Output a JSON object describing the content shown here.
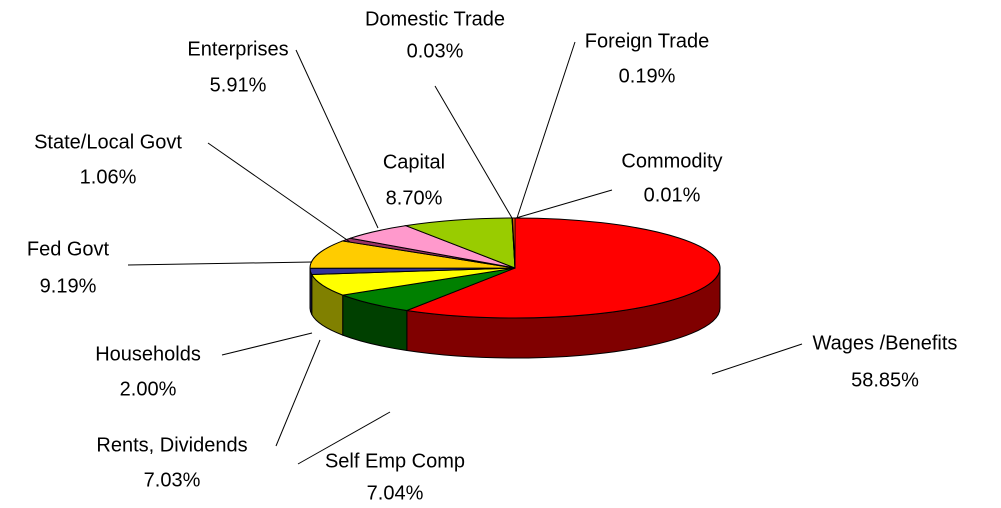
{
  "chart_data": {
    "type": "pie",
    "categories": [
      "Wages /Benefits",
      "Self Emp Comp",
      "Rents, Dividends",
      "Households",
      "Fed Govt",
      "State/Local Govt",
      "Enterprises",
      "Capital",
      "Commodity",
      "Domestic Trade",
      "Foreign Trade"
    ],
    "values": [
      58.85,
      7.04,
      7.03,
      2.0,
      9.19,
      1.06,
      5.91,
      8.7,
      0.01,
      0.03,
      0.19
    ],
    "value_labels": [
      "58.85%",
      "7.04%",
      "7.03%",
      "2.00%",
      "9.19%",
      "1.06%",
      "5.91%",
      "8.70%",
      "0.01%",
      "0.03%",
      "0.19%"
    ],
    "colors": [
      "#ff0000",
      "#008000",
      "#ffff00",
      "#333399",
      "#ffcc00",
      "#993366",
      "#ff99cc",
      "#99cc00",
      "#00ffff",
      "#000080",
      "#ff6600"
    ]
  }
}
